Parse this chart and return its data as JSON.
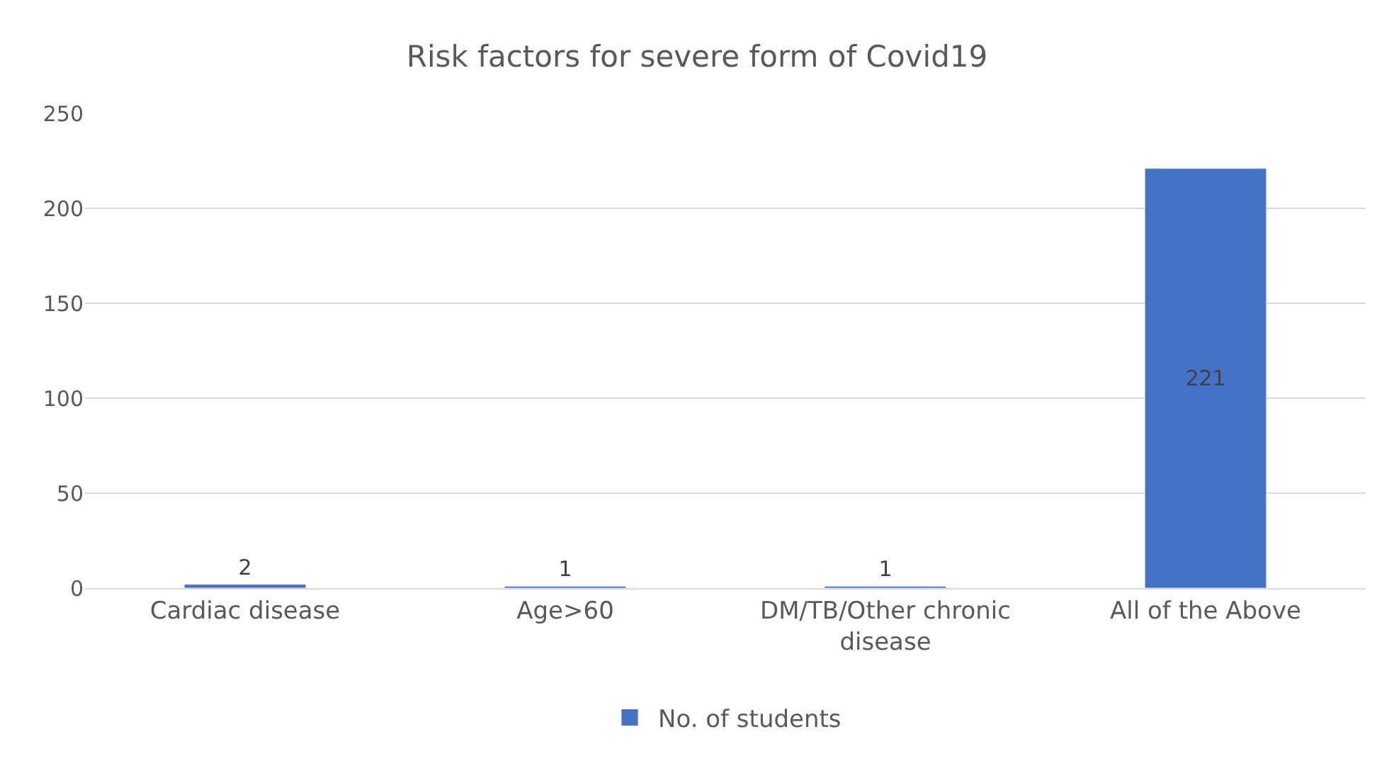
{
  "chart_data": {
    "type": "bar",
    "title": "Risk factors for severe form of Covid19",
    "categories": [
      "Cardiac disease",
      "Age>60",
      "DM/TB/Other chronic disease",
      "All of the Above"
    ],
    "series": [
      {
        "name": "No. of students",
        "color": "#4472c4",
        "values": [
          2,
          1,
          1,
          221
        ]
      }
    ],
    "ylim": [
      0,
      250
    ],
    "yticks": [
      0,
      50,
      100,
      150,
      200,
      250
    ],
    "grid": "y",
    "legend": "bottom",
    "data_labels": true
  }
}
